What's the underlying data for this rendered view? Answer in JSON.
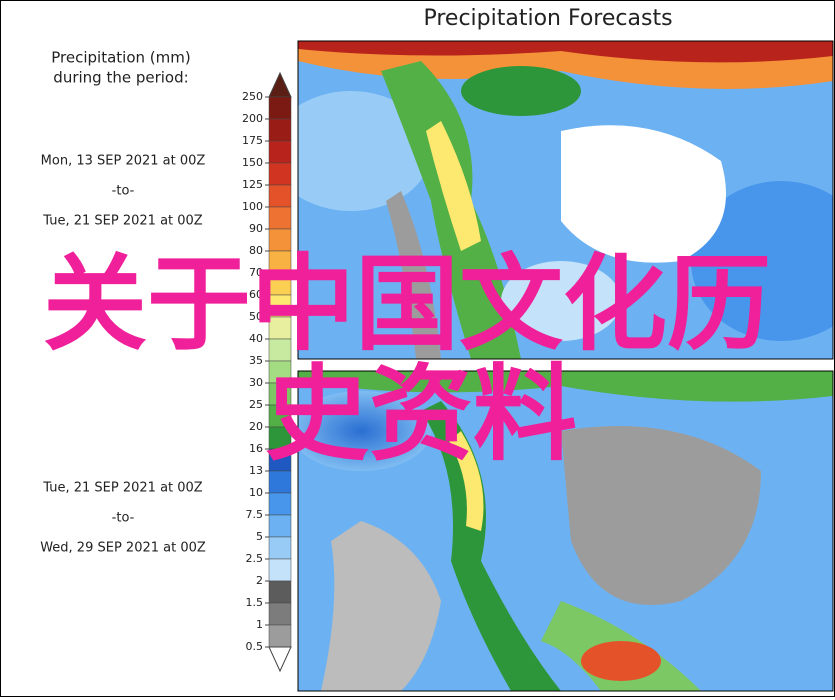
{
  "title": "Precipitation Forecasts",
  "legend": {
    "title_lines": [
      "Precipitation (mm)",
      "during the period:"
    ],
    "periods": [
      {
        "start": "Mon, 13 SEP 2021 at 00Z",
        "sep": "-to-",
        "end": "Tue, 21 SEP 2021 at 00Z"
      },
      {
        "start": "Tue, 21 SEP 2021 at 00Z",
        "sep": "-to-",
        "end": "Wed, 29 SEP 2021 at 00Z"
      }
    ],
    "colorbar": {
      "ticks": [
        250,
        200,
        175,
        150,
        125,
        100,
        90,
        80,
        70,
        60,
        50,
        40,
        35,
        30,
        25,
        20,
        16,
        13,
        10,
        7.5,
        5,
        2.5,
        2,
        1.5,
        1,
        0.5
      ],
      "colors": [
        "#5a1e14",
        "#7a1a12",
        "#9a1c16",
        "#b8241c",
        "#d23422",
        "#e4522a",
        "#ee7232",
        "#f4923a",
        "#f8b244",
        "#fbd052",
        "#fde870",
        "#e8f0a0",
        "#c8eaa0",
        "#a4dc84",
        "#7cc864",
        "#52b046",
        "#2e963a",
        "#1e58c0",
        "#2e78dc",
        "#4896ec",
        "#6cb2f2",
        "#98ccf6",
        "#c4e2fa",
        "#5c5c5c",
        "#7c7c7c",
        "#9c9c9c",
        "#bcbcbc",
        "#ffffff"
      ]
    }
  },
  "overlay_text": [
    "关于中国文化历",
    "史资料"
  ]
}
